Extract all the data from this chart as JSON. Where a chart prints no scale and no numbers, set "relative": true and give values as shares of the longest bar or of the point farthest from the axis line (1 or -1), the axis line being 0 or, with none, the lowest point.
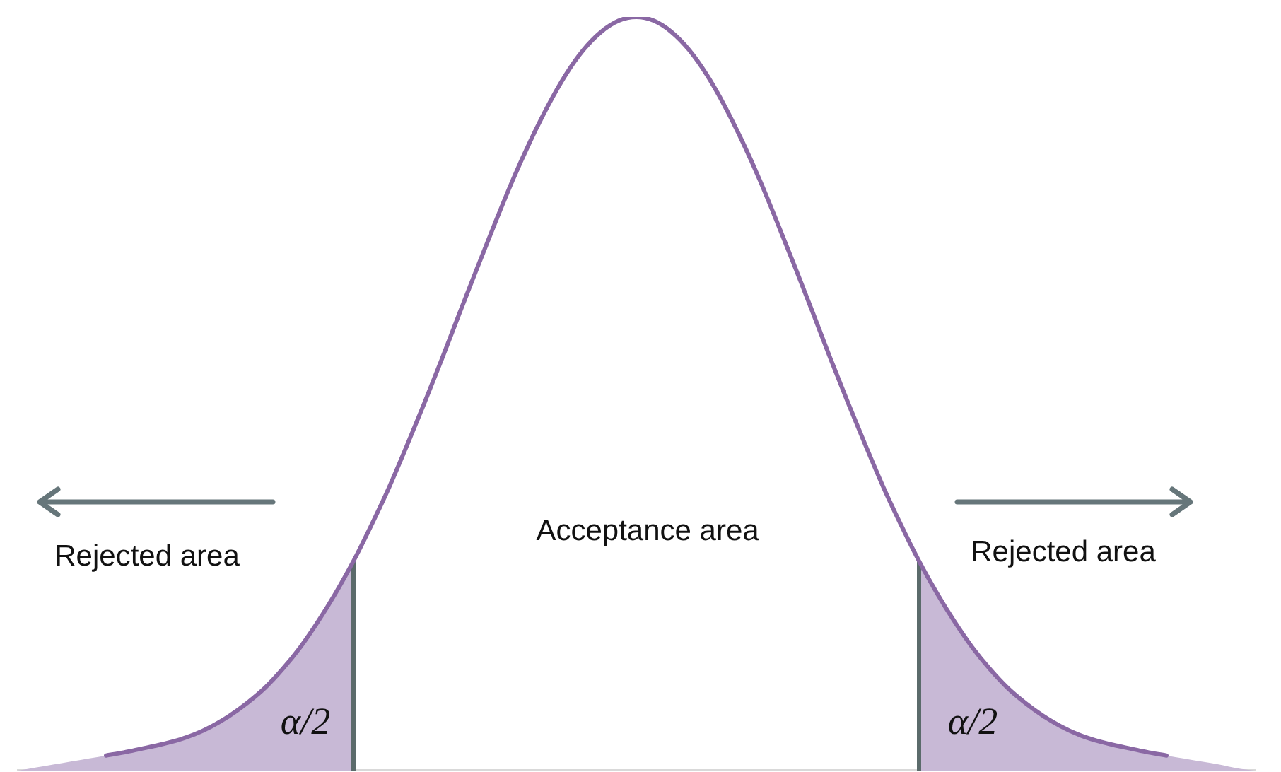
{
  "chart_data": {
    "type": "line",
    "relative": true,
    "categories": [
      null,
      null,
      null,
      null,
      null,
      null,
      null,
      null,
      null,
      null,
      null,
      null,
      null,
      null,
      null,
      null,
      null,
      null,
      null,
      null,
      null,
      null,
      null,
      null,
      null,
      null,
      null,
      null,
      null,
      null,
      null,
      null,
      null,
      null,
      null,
      null,
      null,
      null,
      null,
      null,
      null,
      null,
      null,
      null,
      null,
      null,
      null,
      null,
      null,
      null,
      null,
      null,
      null,
      null,
      null,
      null,
      null,
      null,
      null,
      null,
      null,
      null,
      null,
      null,
      null,
      null,
      null,
      null,
      null,
      null,
      null
    ],
    "series": [
      {
        "type": "area",
        "color": "#c8b9d6",
        "values": [
          0,
          0.004,
          0.008,
          0.012,
          0.016,
          0.02,
          0.024,
          0.029,
          0.034,
          0.04,
          0.048,
          0.059,
          0.073,
          0.09,
          0.11,
          0.135,
          0.164,
          0.198,
          0.236,
          0.278,
          null,
          null,
          null,
          null,
          null,
          null,
          null,
          null,
          null,
          null,
          null,
          null,
          null,
          null,
          null,
          null,
          null,
          null,
          null,
          null,
          null,
          null,
          null,
          null,
          null,
          null,
          null,
          null,
          null,
          null,
          null,
          null,
          null,
          null,
          null,
          null,
          null,
          null,
          null,
          null,
          null,
          null,
          null,
          null,
          null,
          null,
          null,
          null,
          null,
          null,
          null
        ]
      },
      {
        "type": "area",
        "color": "#c8b9d6",
        "values": [
          null,
          null,
          null,
          null,
          null,
          null,
          null,
          null,
          null,
          null,
          null,
          null,
          null,
          null,
          null,
          null,
          null,
          null,
          null,
          null,
          null,
          null,
          null,
          null,
          null,
          null,
          null,
          null,
          null,
          null,
          null,
          null,
          null,
          null,
          null,
          null,
          null,
          null,
          null,
          null,
          null,
          null,
          null,
          null,
          null,
          null,
          null,
          null,
          null,
          null,
          null,
          0.278,
          0.236,
          0.198,
          0.164,
          0.135,
          0.11,
          0.09,
          0.073,
          0.059,
          0.048,
          0.04,
          0.034,
          0.029,
          0.024,
          0.02,
          0.016,
          0.012,
          0.008,
          0.003,
          0
        ]
      },
      {
        "type": "line",
        "color": "#8a68a4",
        "values": [
          null,
          null,
          null,
          null,
          null,
          0.02,
          0.024,
          0.029,
          0.034,
          0.04,
          0.048,
          0.059,
          0.073,
          0.09,
          0.11,
          0.135,
          0.164,
          0.198,
          0.236,
          0.278,
          0.325,
          0.375,
          0.43,
          0.487,
          0.546,
          0.607,
          0.667,
          0.726,
          0.783,
          0.835,
          0.882,
          0.923,
          0.956,
          0.98,
          0.995,
          1,
          0.995,
          0.98,
          0.956,
          0.923,
          0.882,
          0.835,
          0.783,
          0.726,
          0.667,
          0.607,
          0.546,
          0.487,
          0.43,
          0.375,
          0.325,
          0.278,
          0.236,
          0.198,
          0.164,
          0.135,
          0.11,
          0.09,
          0.073,
          0.059,
          0.048,
          0.04,
          0.034,
          0.029,
          0.024,
          0.02,
          null,
          null,
          null,
          null,
          null
        ]
      }
    ],
    "annotations": [
      "Rejected area",
      "Acceptance area",
      "Rejected area",
      "α/2",
      "α/2"
    ]
  }
}
